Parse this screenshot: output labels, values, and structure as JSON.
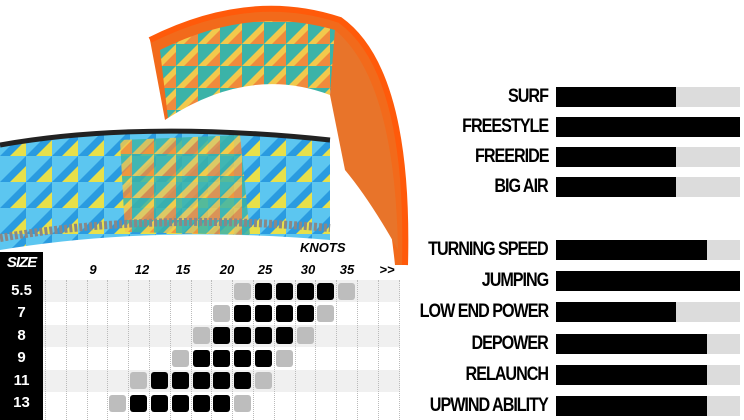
{
  "colors": {
    "kite_orange": "#f26a1b",
    "kite_blue": "#1e90d6",
    "filled": "#000000",
    "marginal": "#bdbdbd",
    "track": "#dcdcdc"
  },
  "ratings_group1": [
    {
      "label": "SURF",
      "value": 0.65
    },
    {
      "label": "FREESTYLE",
      "value": 1.0
    },
    {
      "label": "FREERIDE",
      "value": 0.65
    },
    {
      "label": "BIG AIR",
      "value": 0.65
    }
  ],
  "ratings_group2": [
    {
      "label": "TURNING SPEED",
      "value": 0.82
    },
    {
      "label": "JUMPING",
      "value": 1.0
    },
    {
      "label": "LOW END POWER",
      "value": 0.65
    },
    {
      "label": "DEPOWER",
      "value": 0.82
    },
    {
      "label": "RELAUNCH",
      "value": 0.82
    },
    {
      "label": "UPWIND ABILITY",
      "value": 0.82
    }
  ],
  "wind_chart": {
    "size_header": "SIZE",
    "knots_label": "KNOTS",
    "ticks": [
      "9",
      "12",
      "15",
      "20",
      "25",
      "30",
      "35",
      ">>"
    ],
    "rows": [
      {
        "size": "5.5",
        "marginal": [
          9,
          14
        ],
        "optimal": [
          10,
          11,
          12,
          13
        ]
      },
      {
        "size": "7",
        "marginal": [
          8,
          13
        ],
        "optimal": [
          9,
          10,
          11,
          12
        ]
      },
      {
        "size": "8",
        "marginal": [
          7,
          12
        ],
        "optimal": [
          8,
          9,
          10,
          11
        ]
      },
      {
        "size": "9",
        "marginal": [
          6,
          11
        ],
        "optimal": [
          7,
          8,
          9,
          10
        ]
      },
      {
        "size": "11",
        "marginal": [
          4,
          10
        ],
        "optimal": [
          5,
          6,
          7,
          8,
          9
        ]
      },
      {
        "size": "13",
        "marginal": [
          3,
          9
        ],
        "optimal": [
          4,
          5,
          6,
          7,
          8
        ]
      }
    ]
  }
}
